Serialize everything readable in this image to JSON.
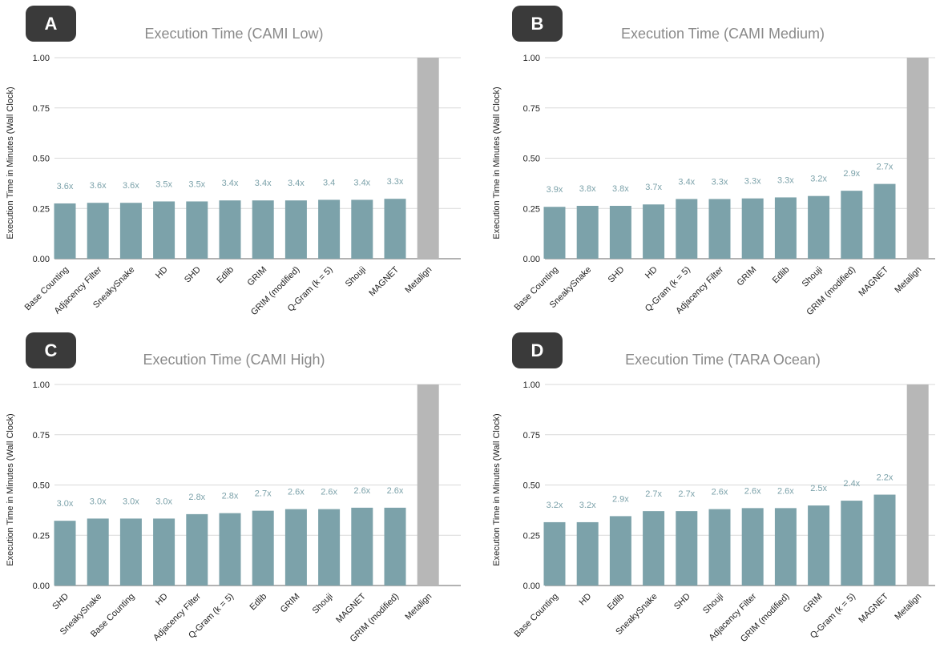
{
  "chart_data": [
    {
      "panel_label": "A",
      "type": "bar",
      "title": "Execution Time (CAMI Low)",
      "ylabel": "Execution Time in Minutes (Wall Clock)",
      "ylim": [
        0,
        1
      ],
      "yticks": [
        "0.00",
        "0.25",
        "0.50",
        "0.75",
        "1.00"
      ],
      "grid": true,
      "categories": [
        "Base Counting",
        "Adjacency Filter",
        "SneakySnake",
        "HD",
        "SHD",
        "Edlib",
        "GRIM",
        "GRIM (modified)",
        "Q-Gram (k = 5)",
        "Shouji",
        "MAGNET",
        "Metalign"
      ],
      "values": [
        0.275,
        0.278,
        0.278,
        0.285,
        0.285,
        0.29,
        0.29,
        0.29,
        0.293,
        0.293,
        0.298,
        1.0
      ],
      "labels": [
        "3.6x",
        "3.6x",
        "3.6x",
        "3.5x",
        "3.5x",
        "3.4x",
        "3.4x",
        "3.4x",
        "3.4",
        "3.4x",
        "3.3x",
        ""
      ],
      "colors": [
        "#7ca2aa",
        "#7ca2aa",
        "#7ca2aa",
        "#7ca2aa",
        "#7ca2aa",
        "#7ca2aa",
        "#7ca2aa",
        "#7ca2aa",
        "#7ca2aa",
        "#7ca2aa",
        "#7ca2aa",
        "#b7b7b7"
      ]
    },
    {
      "panel_label": "B",
      "type": "bar",
      "title": "Execution Time (CAMI Medium)",
      "ylabel": "Execution Time in Minutes (Wall Clock)",
      "ylim": [
        0,
        1
      ],
      "yticks": [
        "0.00",
        "0.25",
        "0.50",
        "0.75",
        "1.00"
      ],
      "grid": true,
      "categories": [
        "Base Counting",
        "SneakySnake",
        "SHD",
        "HD",
        "Q-Gram (k = 5)",
        "Adjacency Filter",
        "GRIM",
        "Edlib",
        "Shouji",
        "GRIM (modified)",
        "MAGNET",
        "Metalign"
      ],
      "values": [
        0.258,
        0.263,
        0.263,
        0.27,
        0.297,
        0.297,
        0.3,
        0.305,
        0.312,
        0.338,
        0.372,
        1.0
      ],
      "labels": [
        "3.9x",
        "3.8x",
        "3.8x",
        "3.7x",
        "3.4x",
        "3.3x",
        "3.3x",
        "3.3x",
        "3.2x",
        "2.9x",
        "2.7x",
        ""
      ],
      "colors": [
        "#7ca2aa",
        "#7ca2aa",
        "#7ca2aa",
        "#7ca2aa",
        "#7ca2aa",
        "#7ca2aa",
        "#7ca2aa",
        "#7ca2aa",
        "#7ca2aa",
        "#7ca2aa",
        "#7ca2aa",
        "#b7b7b7"
      ]
    },
    {
      "panel_label": "C",
      "type": "bar",
      "title": "Execution Time (CAMI High)",
      "ylabel": "Execution Time in Minutes (Wall Clock)",
      "ylim": [
        0,
        1
      ],
      "yticks": [
        "0.00",
        "0.25",
        "0.50",
        "0.75",
        "1.00"
      ],
      "grid": true,
      "categories": [
        "SHD",
        "SneakySnake",
        "Base Counting",
        "HD",
        "Adjacency Filter",
        "Q-Gram (k = 5)",
        "Edlib",
        "GRIM",
        "Shouji",
        "MAGNET",
        "GRIM (modified)",
        "Metalign"
      ],
      "values": [
        0.322,
        0.333,
        0.333,
        0.333,
        0.355,
        0.36,
        0.372,
        0.38,
        0.38,
        0.387,
        0.387,
        1.0
      ],
      "labels": [
        "3.0x",
        "3.0x",
        "3.0x",
        "3.0x",
        "2.8x",
        "2.8x",
        "2.7x",
        "2.6x",
        "2.6x",
        "2.6x",
        "2.6x",
        ""
      ],
      "colors": [
        "#7ca2aa",
        "#7ca2aa",
        "#7ca2aa",
        "#7ca2aa",
        "#7ca2aa",
        "#7ca2aa",
        "#7ca2aa",
        "#7ca2aa",
        "#7ca2aa",
        "#7ca2aa",
        "#7ca2aa",
        "#b7b7b7"
      ]
    },
    {
      "panel_label": "D",
      "type": "bar",
      "title": "Execution Time (TARA Ocean)",
      "ylabel": "Execution Time in Minutes (Wall Clock)",
      "ylim": [
        0,
        1
      ],
      "yticks": [
        "0.00",
        "0.25",
        "0.50",
        "0.75",
        "1.00"
      ],
      "grid": true,
      "categories": [
        "Base Counting",
        "HD",
        "Edlib",
        "SneakySnake",
        "SHD",
        "Shouji",
        "Adjacency Filter",
        "GRIM (modified)",
        "GRIM",
        "Q-Gram (k = 5)",
        "MAGNET",
        "Metalign"
      ],
      "values": [
        0.315,
        0.315,
        0.345,
        0.37,
        0.37,
        0.38,
        0.385,
        0.385,
        0.398,
        0.422,
        0.452,
        1.0
      ],
      "labels": [
        "3.2x",
        "3.2x",
        "2.9x",
        "2.7x",
        "2.7x",
        "2.6x",
        "2.6x",
        "2.6x",
        "2.5x",
        "2.4x",
        "2.2x",
        ""
      ],
      "colors": [
        "#7ca2aa",
        "#7ca2aa",
        "#7ca2aa",
        "#7ca2aa",
        "#7ca2aa",
        "#7ca2aa",
        "#7ca2aa",
        "#7ca2aa",
        "#7ca2aa",
        "#7ca2aa",
        "#7ca2aa",
        "#b7b7b7"
      ]
    }
  ],
  "style": {
    "bar_color": "#7ca2aa",
    "baseline_bar_color": "#b7b7b7",
    "label_color": "#7ca2aa",
    "title_color": "#8a8a8a",
    "badge_color": "#3a3a3a"
  }
}
